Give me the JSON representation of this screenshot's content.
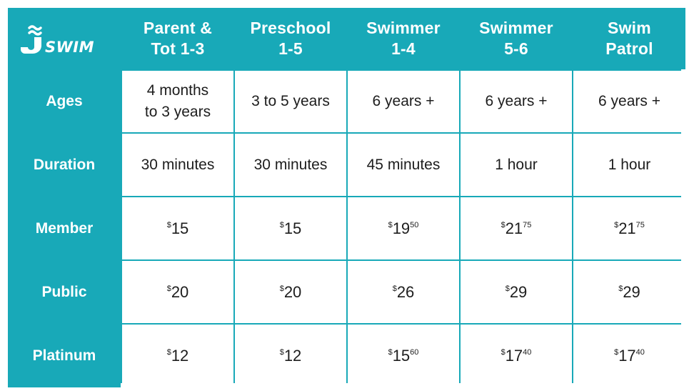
{
  "brand": {
    "logo_text": "SWIM"
  },
  "colors": {
    "accent": "#18a9b8",
    "cell_bg": "#ffffff",
    "text": "#1d1d1d"
  },
  "columns": [
    {
      "line1": "Parent &",
      "line2": "Tot 1-3"
    },
    {
      "line1": "Preschool",
      "line2": "1-5"
    },
    {
      "line1": "Swimmer",
      "line2": "1-4"
    },
    {
      "line1": "Swimmer",
      "line2": "5-6"
    },
    {
      "line1": "Swim",
      "line2": "Patrol"
    }
  ],
  "rows": [
    {
      "label": "Ages",
      "cells": [
        {
          "line1": "4 months",
          "line2": "to 3 years"
        },
        {
          "line1": "3 to 5 years",
          "line2": ""
        },
        {
          "line1": "6 years +",
          "line2": ""
        },
        {
          "line1": "6 years +",
          "line2": ""
        },
        {
          "line1": "6 years +",
          "line2": ""
        }
      ]
    },
    {
      "label": "Duration",
      "cells": [
        {
          "line1": "30 minutes",
          "line2": ""
        },
        {
          "line1": "30 minutes",
          "line2": ""
        },
        {
          "line1": "45 minutes",
          "line2": ""
        },
        {
          "line1": "1 hour",
          "line2": ""
        },
        {
          "line1": "1 hour",
          "line2": ""
        }
      ]
    },
    {
      "label": "Member",
      "cells": [
        {
          "cur": "$",
          "whole": "15",
          "cents": ""
        },
        {
          "cur": "$",
          "whole": "15",
          "cents": ""
        },
        {
          "cur": "$",
          "whole": "19",
          "cents": "50"
        },
        {
          "cur": "$",
          "whole": "21",
          "cents": "75"
        },
        {
          "cur": "$",
          "whole": "21",
          "cents": "75"
        }
      ]
    },
    {
      "label": "Public",
      "cells": [
        {
          "cur": "$",
          "whole": "20",
          "cents": ""
        },
        {
          "cur": "$",
          "whole": "20",
          "cents": ""
        },
        {
          "cur": "$",
          "whole": "26",
          "cents": ""
        },
        {
          "cur": "$",
          "whole": "29",
          "cents": ""
        },
        {
          "cur": "$",
          "whole": "29",
          "cents": ""
        }
      ]
    },
    {
      "label": "Platinum",
      "cells": [
        {
          "cur": "$",
          "whole": "12",
          "cents": ""
        },
        {
          "cur": "$",
          "whole": "12",
          "cents": ""
        },
        {
          "cur": "$",
          "whole": "15",
          "cents": "60"
        },
        {
          "cur": "$",
          "whole": "17",
          "cents": "40"
        },
        {
          "cur": "$",
          "whole": "17",
          "cents": "40"
        }
      ]
    }
  ]
}
